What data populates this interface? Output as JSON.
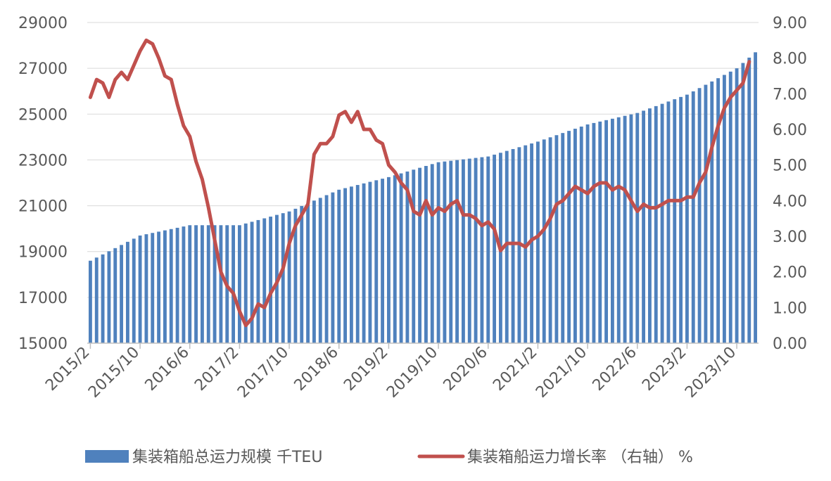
{
  "chart_data": {
    "type": "bar+line",
    "x_tick_labels": [
      "2015/2",
      "2015/10",
      "2016/6",
      "2017/2",
      "2017/10",
      "2018/6",
      "2019/2",
      "2019/10",
      "2020/6",
      "2021/2",
      "2021/10",
      "2022/6",
      "2023/2",
      "2023/10"
    ],
    "left_axis": {
      "ylim": [
        15000,
        29000
      ],
      "ticks": [
        "15000",
        "17000",
        "19000",
        "21000",
        "23000",
        "25000",
        "27000",
        "29000"
      ]
    },
    "right_axis": {
      "ylim": [
        0,
        9
      ],
      "ticks": [
        "0.00",
        "1.00",
        "2.00",
        "3.00",
        "4.00",
        "5.00",
        "6.00",
        "7.00",
        "8.00",
        "9.00"
      ]
    },
    "series": [
      {
        "name": "集装箱船总运力规模 千TEU",
        "type": "bar",
        "axis": "left",
        "color": "#4f81bd",
        "anchors": [
          [
            "2015/2",
            18600
          ],
          [
            "2015/10",
            19700
          ],
          [
            "2016/6",
            20150
          ],
          [
            "2017/2",
            20150
          ],
          [
            "2017/10",
            20750
          ],
          [
            "2018/6",
            21700
          ],
          [
            "2019/2",
            22250
          ],
          [
            "2019/10",
            22900
          ],
          [
            "2020/6",
            23150
          ],
          [
            "2021/2",
            23800
          ],
          [
            "2021/10",
            24550
          ],
          [
            "2022/6",
            25050
          ],
          [
            "2023/2",
            25850
          ],
          [
            "2023/10",
            27000
          ],
          [
            "2024/1",
            27700
          ]
        ]
      },
      {
        "name": "集装箱船运力增长率 （右轴） %",
        "type": "line",
        "axis": "right",
        "color": "#c0504d",
        "anchors": [
          [
            "2015/2",
            6.9
          ],
          [
            "2015/3",
            7.4
          ],
          [
            "2015/4",
            7.3
          ],
          [
            "2015/5",
            6.9
          ],
          [
            "2015/6",
            7.4
          ],
          [
            "2015/7",
            7.6
          ],
          [
            "2015/8",
            7.4
          ],
          [
            "2015/9",
            7.8
          ],
          [
            "2015/10",
            8.2
          ],
          [
            "2015/11",
            8.5
          ],
          [
            "2015/12",
            8.4
          ],
          [
            "2016/1",
            8.0
          ],
          [
            "2016/2",
            7.5
          ],
          [
            "2016/3",
            7.4
          ],
          [
            "2016/4",
            6.7
          ],
          [
            "2016/5",
            6.1
          ],
          [
            "2016/6",
            5.8
          ],
          [
            "2016/7",
            5.1
          ],
          [
            "2016/8",
            4.6
          ],
          [
            "2016/9",
            3.8
          ],
          [
            "2016/10",
            2.9
          ],
          [
            "2016/11",
            2.0
          ],
          [
            "2016/12",
            1.6
          ],
          [
            "2017/1",
            1.4
          ],
          [
            "2017/2",
            0.9
          ],
          [
            "2017/3",
            0.5
          ],
          [
            "2017/4",
            0.7
          ],
          [
            "2017/5",
            1.1
          ],
          [
            "2017/6",
            1.0
          ],
          [
            "2017/7",
            1.4
          ],
          [
            "2017/8",
            1.7
          ],
          [
            "2017/9",
            2.1
          ],
          [
            "2017/10",
            2.8
          ],
          [
            "2017/11",
            3.3
          ],
          [
            "2017/12",
            3.6
          ],
          [
            "2018/1",
            3.9
          ],
          [
            "2018/2",
            5.3
          ],
          [
            "2018/3",
            5.6
          ],
          [
            "2018/4",
            5.6
          ],
          [
            "2018/5",
            5.8
          ],
          [
            "2018/6",
            6.4
          ],
          [
            "2018/7",
            6.5
          ],
          [
            "2018/8",
            6.2
          ],
          [
            "2018/9",
            6.5
          ],
          [
            "2018/10",
            6.0
          ],
          [
            "2018/11",
            6.0
          ],
          [
            "2018/12",
            5.7
          ],
          [
            "2019/1",
            5.6
          ],
          [
            "2019/2",
            5.0
          ],
          [
            "2019/3",
            4.8
          ],
          [
            "2019/4",
            4.5
          ],
          [
            "2019/5",
            4.3
          ],
          [
            "2019/6",
            3.7
          ],
          [
            "2019/7",
            3.6
          ],
          [
            "2019/8",
            4.0
          ],
          [
            "2019/9",
            3.6
          ],
          [
            "2019/10",
            3.8
          ],
          [
            "2019/11",
            3.7
          ],
          [
            "2019/12",
            3.9
          ],
          [
            "2020/1",
            4.0
          ],
          [
            "2020/2",
            3.6
          ],
          [
            "2020/3",
            3.6
          ],
          [
            "2020/4",
            3.5
          ],
          [
            "2020/5",
            3.3
          ],
          [
            "2020/6",
            3.4
          ],
          [
            "2020/7",
            3.2
          ],
          [
            "2020/8",
            2.6
          ],
          [
            "2020/9",
            2.8
          ],
          [
            "2020/10",
            2.8
          ],
          [
            "2020/11",
            2.8
          ],
          [
            "2020/12",
            2.7
          ],
          [
            "2021/1",
            2.9
          ],
          [
            "2021/2",
            3.0
          ],
          [
            "2021/3",
            3.2
          ],
          [
            "2021/4",
            3.5
          ],
          [
            "2021/5",
            3.9
          ],
          [
            "2021/6",
            4.0
          ],
          [
            "2021/7",
            4.2
          ],
          [
            "2021/8",
            4.4
          ],
          [
            "2021/9",
            4.3
          ],
          [
            "2021/10",
            4.2
          ],
          [
            "2021/11",
            4.4
          ],
          [
            "2021/12",
            4.5
          ],
          [
            "2022/1",
            4.5
          ],
          [
            "2022/2",
            4.3
          ],
          [
            "2022/3",
            4.4
          ],
          [
            "2022/4",
            4.3
          ],
          [
            "2022/5",
            4.0
          ],
          [
            "2022/6",
            3.7
          ],
          [
            "2022/7",
            3.9
          ],
          [
            "2022/8",
            3.8
          ],
          [
            "2022/9",
            3.8
          ],
          [
            "2022/10",
            3.9
          ],
          [
            "2022/11",
            4.0
          ],
          [
            "2022/12",
            4.0
          ],
          [
            "2023/1",
            4.0
          ],
          [
            "2023/2",
            4.1
          ],
          [
            "2023/3",
            4.1
          ],
          [
            "2023/4",
            4.5
          ],
          [
            "2023/5",
            4.8
          ],
          [
            "2023/6",
            5.5
          ],
          [
            "2023/7",
            6.1
          ],
          [
            "2023/8",
            6.6
          ],
          [
            "2023/9",
            6.9
          ],
          [
            "2023/10",
            7.1
          ],
          [
            "2023/11",
            7.3
          ],
          [
            "2023/12",
            7.9
          ]
        ]
      }
    ],
    "grid": true,
    "legend_position": "bottom"
  }
}
